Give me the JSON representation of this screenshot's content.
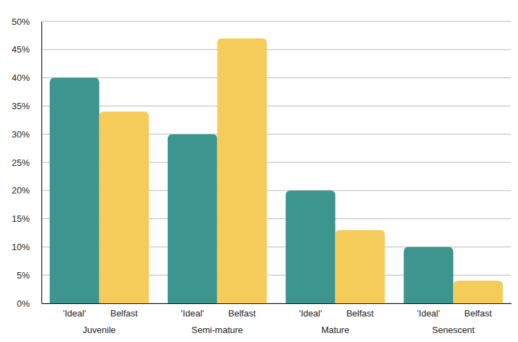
{
  "chart_data": {
    "type": "bar",
    "categories": [
      "Juvenile",
      "Semi-mature",
      "Mature",
      "Senescent"
    ],
    "series": [
      {
        "name": "'Ideal'",
        "color": "#3d958f",
        "values": [
          40,
          30,
          20,
          10
        ]
      },
      {
        "name": "Belfast",
        "color": "#f5cb5a",
        "values": [
          34,
          47,
          13,
          4
        ]
      }
    ],
    "ylim": [
      0,
      50
    ],
    "yticks": [
      {
        "value": 0,
        "label": "0%"
      },
      {
        "value": 5,
        "label": "5%"
      },
      {
        "value": 10,
        "label": "10%"
      },
      {
        "value": 15,
        "label": "15%"
      },
      {
        "value": 20,
        "label": "20%"
      },
      {
        "value": 25,
        "label": "25%"
      },
      {
        "value": 30,
        "label": "30%"
      },
      {
        "value": 35,
        "label": "35%"
      },
      {
        "value": 40,
        "label": "40%"
      },
      {
        "value": 45,
        "label": "45%"
      },
      {
        "value": 50,
        "label": "50%"
      }
    ],
    "grid": true
  }
}
